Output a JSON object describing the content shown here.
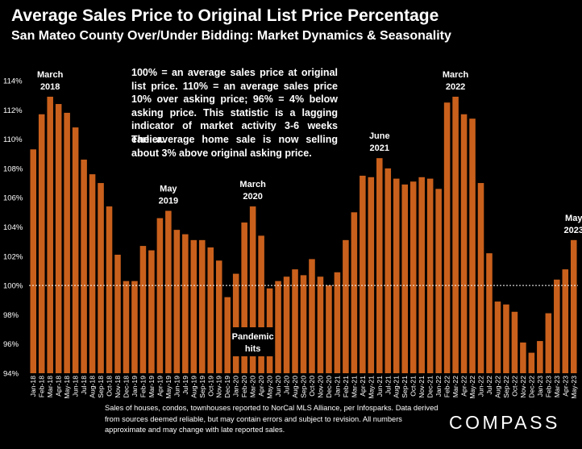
{
  "title": "Average Sales Price to Original List Price Percentage",
  "subtitle": "San Mateo County Over/Under Bidding: Market Dynamics & Seasonality",
  "note_definition": "100% = an average sales price at original list price. 110% = an average sales price 10% over asking price; 96% = 4% below asking price. This statistic is a lagging indicator of market activity 3-6 weeks earlier.",
  "note_current": "The average home sale is now selling about 3% above original asking price.",
  "footer": "Sales of houses, condos, townhouses reported to NorCal MLS Alliance, per Infosparks. Data derived from sources deemed reliable, but may contain errors and subject to revision. All numbers approximate and may change with late reported sales.",
  "logo": "COMPASS",
  "colors": {
    "bar": "#C9601C",
    "background": "#000000",
    "reference_line": "#FFFFFF"
  },
  "chart_data": {
    "type": "bar",
    "title": "Average Sales Price to Original List Price Percentage",
    "categories": [
      "Jan-18",
      "Feb-18",
      "Mar-18",
      "Apr-18",
      "May-18",
      "Jun-18",
      "Jul-18",
      "Aug-18",
      "Sep-18",
      "Oct-18",
      "Nov-18",
      "Dec-18",
      "Jan-19",
      "Feb-19",
      "Mar-19",
      "Apr-19",
      "May-19",
      "Jun-19",
      "Jul-19",
      "Aug-19",
      "Sep-19",
      "Oct-19",
      "Nov-19",
      "Dec-19",
      "Jan-20",
      "Feb-20",
      "Mar-20",
      "Apr-20",
      "May-20",
      "Jun-20",
      "Jul-20",
      "Aug-20",
      "Sep-20",
      "Oct-20",
      "Nov-20",
      "Dec-20",
      "Jan-21",
      "Feb-21",
      "Mar-21",
      "Apr-21",
      "May-21",
      "Jun-21",
      "Jul-21",
      "Aug-21",
      "Sep-21",
      "Oct-21",
      "Nov-21",
      "Dec-21",
      "Jan-22",
      "Feb-22",
      "Mar-22",
      "Apr-22",
      "May-22",
      "Jun-22",
      "Jul-22",
      "Aug-22",
      "Sep-22",
      "Oct-22",
      "Nov-22",
      "Dec-22",
      "Jan-23",
      "Feb-23",
      "Mar-23",
      "Apr-23",
      "May-23"
    ],
    "values": [
      109.3,
      111.7,
      112.9,
      112.4,
      111.8,
      110.8,
      108.6,
      107.6,
      107.0,
      105.4,
      102.1,
      100.3,
      100.3,
      102.7,
      102.4,
      104.6,
      105.1,
      103.8,
      103.5,
      103.1,
      103.1,
      102.6,
      101.7,
      99.2,
      100.8,
      104.3,
      105.4,
      103.4,
      99.8,
      100.3,
      100.6,
      101.1,
      100.7,
      101.8,
      100.6,
      100.0,
      100.9,
      103.1,
      105.0,
      107.5,
      107.4,
      108.7,
      108.0,
      107.3,
      106.9,
      107.1,
      107.4,
      107.3,
      106.6,
      112.5,
      112.9,
      111.7,
      111.4,
      107.0,
      102.2,
      98.9,
      98.7,
      98.2,
      96.1,
      95.4,
      96.2,
      98.1,
      100.4,
      101.1,
      103.1
    ],
    "y_ticks": [
      "94%",
      "96%",
      "98%",
      "100%",
      "102%",
      "104%",
      "106%",
      "108%",
      "110%",
      "112%",
      "114%"
    ],
    "ylim": [
      94,
      114
    ],
    "reference_line": 100,
    "annotations": [
      {
        "label": "March 2018",
        "lines": [
          "March",
          "2018"
        ],
        "category": "Mar-18"
      },
      {
        "label": "May 2019",
        "lines": [
          "May",
          "2019"
        ],
        "category": "May-19"
      },
      {
        "label": "March 2020",
        "lines": [
          "March",
          "2020"
        ],
        "category": "Mar-20"
      },
      {
        "label": "June 2021",
        "lines": [
          "June",
          "2021"
        ],
        "category": "Jun-21"
      },
      {
        "label": "March 2022",
        "lines": [
          "March",
          "2022"
        ],
        "category": "Mar-22"
      },
      {
        "label": "May 2023",
        "lines": [
          "May",
          "2023"
        ],
        "category": "May-23"
      }
    ],
    "callout": {
      "lines": [
        "Pandemic",
        "hits"
      ],
      "category": "Mar-20"
    }
  }
}
